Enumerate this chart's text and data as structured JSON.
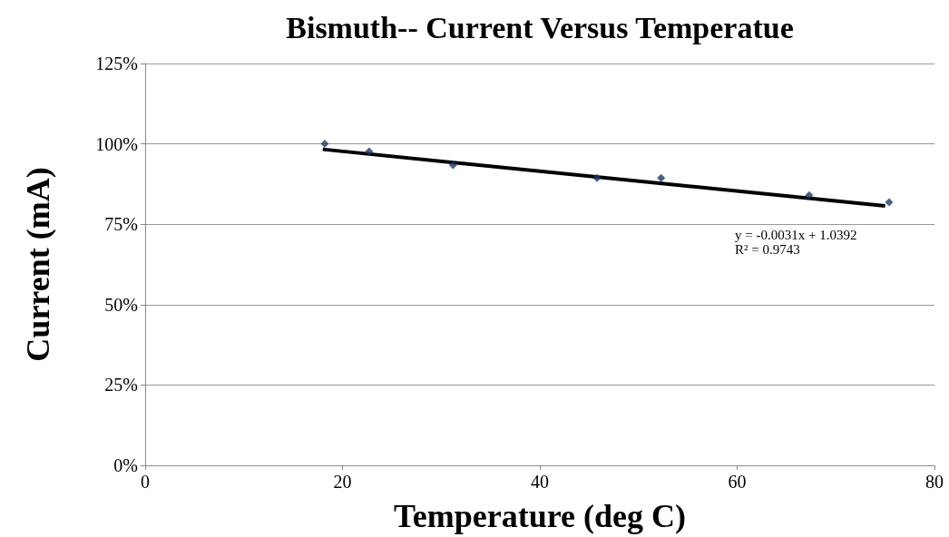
{
  "chart_data": {
    "type": "scatter",
    "title": "Bismuth-- Current Versus Temperatue",
    "xlabel": "Temperature (deg C)",
    "ylabel": "Current (mA)",
    "x": [
      18.2,
      22.7,
      31.2,
      45.8,
      52.3,
      67.3,
      75.4
    ],
    "series": [
      {
        "color": "#1f3864",
        "values": [
          1.0,
          0.976,
          0.934,
          0.894,
          0.894,
          0.84,
          0.818
        ],
        "marker": "diamond"
      },
      {
        "type": "line",
        "color": "#000000",
        "x": [
          18,
          75
        ],
        "values": [
          0.983,
          0.807
        ],
        "marker": "none",
        "line_style": "solid"
      }
    ],
    "xlim": [
      0,
      80
    ],
    "xticks": [
      0,
      20,
      40,
      60,
      80
    ],
    "ylim": [
      0,
      1.25
    ],
    "yticks": [
      {
        "value": 0,
        "label": "0%"
      },
      {
        "value": 0.25,
        "label": "25%"
      },
      {
        "value": 0.5,
        "label": "50%"
      },
      {
        "value": 0.75,
        "label": "75%"
      },
      {
        "value": 1,
        "label": "100%"
      },
      {
        "value": 1.25,
        "label": "125%"
      }
    ],
    "grid": "y",
    "annotations": [
      "y = -0.0031x + 1.0392",
      "R² = 0.9743"
    ]
  }
}
